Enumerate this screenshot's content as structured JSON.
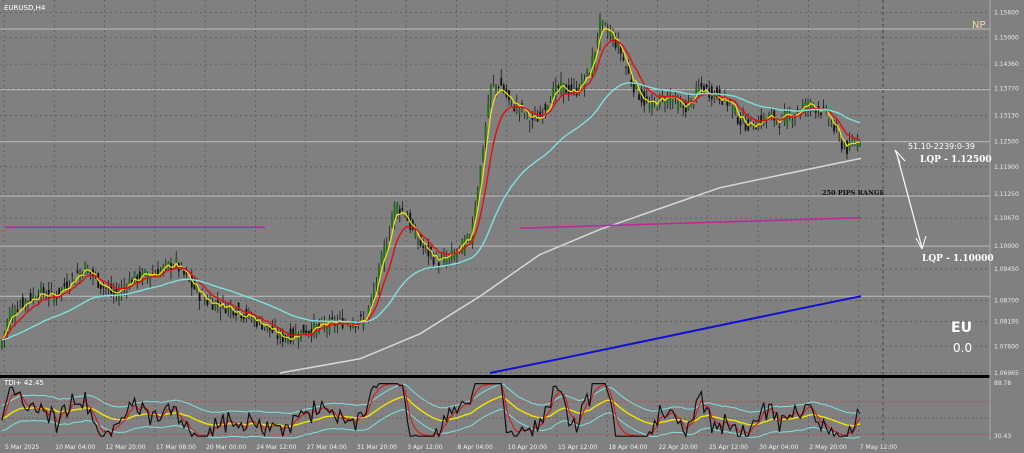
{
  "window": {
    "symbol": "EURUSD,H4"
  },
  "colors": {
    "bg": "#808080",
    "grid": "#5a5a5a",
    "bull": "#1f6b1f",
    "bear": "#111111",
    "ema_fast": "#f2e600",
    "ema_mid": "#e01010",
    "ema_slow": "#7fe0e0",
    "ema_long": "#d8d8d8",
    "ema_longest": "#1010d0",
    "magenta": "#c0259a"
  },
  "chart_data": {
    "type": "candlestick",
    "symbol": "EURUSD,H4",
    "ylim": [
      1.0696,
      1.158
    ],
    "y_ticks": [
      "1.15600",
      "1.15000",
      "1.14360",
      "1.13770",
      "1.13130",
      "1.12500",
      "1.11900",
      "1.11250",
      "1.10670",
      "1.10000",
      "1.09450",
      "1.08700",
      "1.08195",
      "1.07600",
      "1.06965"
    ],
    "x_ticks": [
      "5 Mar 2025",
      "10 Mar 04:00",
      "12 Mar 20:00",
      "17 Mar 08:00",
      "20 Mar 00:00",
      "24 Mar 12:00",
      "27 Mar 04:00",
      "31 Mar 20:00",
      "3 Apr 12:00",
      "8 Apr 04:00",
      "10 Apr 20:00",
      "15 Apr 12:00",
      "18 Apr 04:00",
      "22 Apr 20:00",
      "25 Apr 12:00",
      "30 Apr 04:00",
      "2 May 20:00",
      "7 May 12:00"
    ],
    "path": [
      [
        0,
        1.076
      ],
      [
        10,
        1.084
      ],
      [
        25,
        1.087
      ],
      [
        40,
        1.089
      ],
      [
        55,
        1.088
      ],
      [
        70,
        1.092
      ],
      [
        85,
        1.095
      ],
      [
        100,
        1.091
      ],
      [
        115,
        1.088
      ],
      [
        130,
        1.092
      ],
      [
        145,
        1.093
      ],
      [
        160,
        1.094
      ],
      [
        175,
        1.096
      ],
      [
        190,
        1.091
      ],
      [
        205,
        1.087
      ],
      [
        220,
        1.086
      ],
      [
        235,
        1.085
      ],
      [
        250,
        1.083
      ],
      [
        265,
        1.081
      ],
      [
        280,
        1.078
      ],
      [
        295,
        1.079
      ],
      [
        310,
        1.08
      ],
      [
        325,
        1.081
      ],
      [
        345,
        1.082
      ],
      [
        365,
        1.082
      ],
      [
        375,
        1.09
      ],
      [
        385,
        1.1
      ],
      [
        395,
        1.11
      ],
      [
        405,
        1.108
      ],
      [
        415,
        1.102
      ],
      [
        425,
        1.099
      ],
      [
        440,
        1.096
      ],
      [
        455,
        1.098
      ],
      [
        470,
        1.102
      ],
      [
        480,
        1.118
      ],
      [
        490,
        1.138
      ],
      [
        500,
        1.139
      ],
      [
        510,
        1.134
      ],
      [
        520,
        1.133
      ],
      [
        530,
        1.13
      ],
      [
        540,
        1.131
      ],
      [
        550,
        1.136
      ],
      [
        560,
        1.138
      ],
      [
        575,
        1.137
      ],
      [
        590,
        1.142
      ],
      [
        600,
        1.153
      ],
      [
        610,
        1.151
      ],
      [
        620,
        1.147
      ],
      [
        630,
        1.14
      ],
      [
        640,
        1.136
      ],
      [
        650,
        1.133
      ],
      [
        660,
        1.135
      ],
      [
        670,
        1.136
      ],
      [
        680,
        1.133
      ],
      [
        690,
        1.134
      ],
      [
        700,
        1.138
      ],
      [
        710,
        1.137
      ],
      [
        720,
        1.136
      ],
      [
        730,
        1.134
      ],
      [
        740,
        1.13
      ],
      [
        750,
        1.129
      ],
      [
        760,
        1.13
      ],
      [
        770,
        1.131
      ],
      [
        780,
        1.13
      ],
      [
        790,
        1.131
      ],
      [
        800,
        1.133
      ],
      [
        810,
        1.134
      ],
      [
        820,
        1.133
      ],
      [
        830,
        1.13
      ],
      [
        840,
        1.125
      ],
      [
        848,
        1.123
      ],
      [
        855,
        1.125
      ],
      [
        861,
        1.126
      ]
    ],
    "indicators": {
      "ema_long": [
        [
          280,
          1.0696
        ],
        [
          360,
          1.073
        ],
        [
          420,
          1.079
        ],
        [
          480,
          1.088
        ],
        [
          540,
          1.098
        ],
        [
          600,
          1.104
        ],
        [
          660,
          1.109
        ],
        [
          720,
          1.114
        ],
        [
          780,
          1.117
        ],
        [
          861,
          1.121
        ]
      ],
      "ema_longest": [
        [
          490,
          1.0696
        ],
        [
          560,
          1.073
        ],
        [
          640,
          1.077
        ],
        [
          720,
          1.081
        ],
        [
          800,
          1.085
        ],
        [
          861,
          1.088
        ]
      ],
      "magenta_left": [
        [
          5,
          1.1045
        ],
        [
          265,
          1.1045
        ]
      ],
      "magenta_right": [
        [
          520,
          1.1043
        ],
        [
          861,
          1.1068
        ]
      ]
    },
    "horizontal_levels": [
      1.152,
      1.1375,
      1.125,
      1.112,
      1.1,
      1.088
    ],
    "annotations": {
      "np": "NP",
      "lqp_upper": "LQP - 1.12500",
      "lqp_lower": "LQP - 1.10000",
      "range": "250 PIPS RANGE",
      "info": "51.10-2239:0-39",
      "eu": "EU",
      "eu_value": "0.0"
    },
    "tdi": {
      "label": "TDI+ 42.45",
      "ylim": [
        28,
        92
      ],
      "ticks": [
        "88.78",
        "30.43"
      ]
    }
  }
}
